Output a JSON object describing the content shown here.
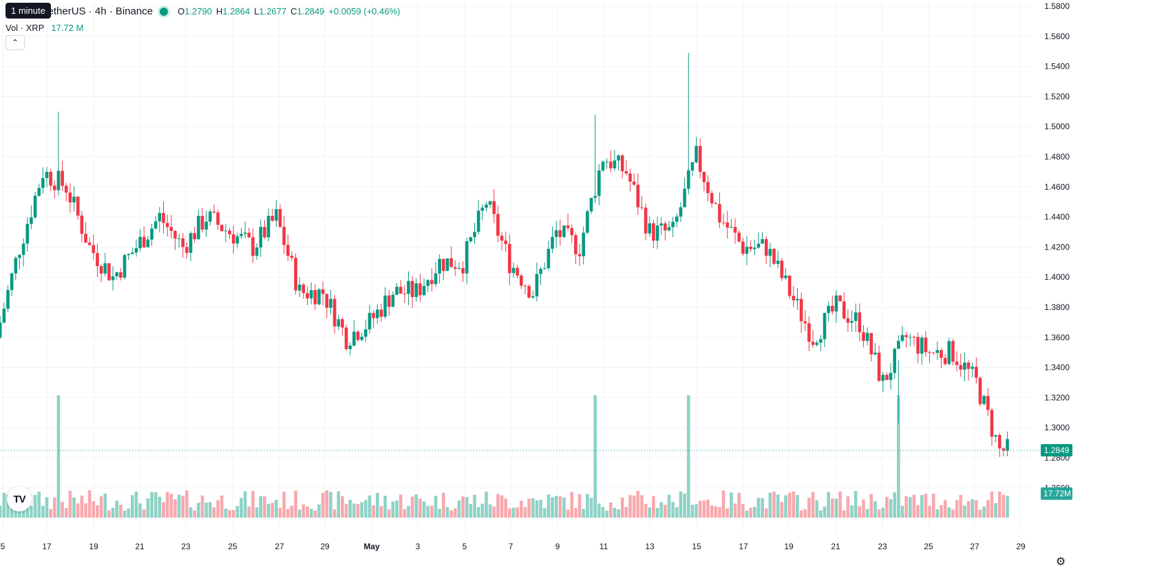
{
  "tooltip": "1 minute",
  "legend": {
    "symbol": "TetherUS · 4h · Binance",
    "open_label": "O",
    "open": "1.2790",
    "high_label": "H",
    "high": "1.2864",
    "low_label": "L",
    "low": "1.2677",
    "close_label": "C",
    "close": "1.2849",
    "change": "+0.0059 (+0.46%)",
    "vol_label": "Vol · XRP",
    "vol_value": "17.72 M"
  },
  "colors": {
    "up": "#089981",
    "down": "#f23645",
    "up_vol": "#8ed2c6",
    "down_vol": "#f7a9ae",
    "grid": "#f0f3fa"
  },
  "icons": {
    "collapse": "chevron-up-icon",
    "logo": "tradingview-logo",
    "settings": "gear-icon"
  },
  "price_badge": "1.2849",
  "volume_badge": "17.72M",
  "logo_text": "TV",
  "chart_data": {
    "type": "candlestick",
    "ylim": [
      1.245,
      1.584
    ],
    "ytick_values": [
      1.26,
      1.28,
      1.3,
      1.32,
      1.34,
      1.36,
      1.38,
      1.4,
      1.42,
      1.44,
      1.46,
      1.48,
      1.5,
      1.52,
      1.54,
      1.56,
      1.58
    ],
    "yticks": [
      "1.2600",
      "1.2800",
      "1.3000",
      "1.3200",
      "1.3400",
      "1.3600",
      "1.3800",
      "1.4000",
      "1.4200",
      "1.4400",
      "1.4600",
      "1.4800",
      "1.5000",
      "1.5200",
      "1.5400",
      "1.5600",
      "1.5800"
    ],
    "xticks": [
      "5",
      "17",
      "19",
      "21",
      "23",
      "25",
      "27",
      "29",
      "May",
      "3",
      "5",
      "7",
      "9",
      "11",
      "13",
      "15",
      "17",
      "19",
      "21",
      "23",
      "25",
      "27",
      "29"
    ],
    "current_price": 1.2849,
    "anchors": [
      {
        "date": "2025-04-15",
        "price": 1.36
      },
      {
        "date": "2025-04-16",
        "price": 1.42
      },
      {
        "date": "2025-04-17",
        "price": 1.47
      },
      {
        "date": "2025-04-18",
        "price": 1.46
      },
      {
        "date": "2025-04-19",
        "price": 1.42
      },
      {
        "date": "2025-04-20",
        "price": 1.4
      },
      {
        "date": "2025-04-21",
        "price": 1.42
      },
      {
        "date": "2025-04-22",
        "price": 1.44
      },
      {
        "date": "2025-04-23",
        "price": 1.42
      },
      {
        "date": "2025-04-24",
        "price": 1.44
      },
      {
        "date": "2025-04-25",
        "price": 1.43
      },
      {
        "date": "2025-04-26",
        "price": 1.42
      },
      {
        "date": "2025-04-27",
        "price": 1.44
      },
      {
        "date": "2025-04-28",
        "price": 1.39
      },
      {
        "date": "2025-04-29",
        "price": 1.39
      },
      {
        "date": "2025-04-30",
        "price": 1.36
      },
      {
        "date": "2025-05-01",
        "price": 1.37
      },
      {
        "date": "2025-05-02",
        "price": 1.39
      },
      {
        "date": "2025-05-03",
        "price": 1.39
      },
      {
        "date": "2025-05-04",
        "price": 1.41
      },
      {
        "date": "2025-05-05",
        "price": 1.41
      },
      {
        "date": "2025-05-06",
        "price": 1.45
      },
      {
        "date": "2025-05-07",
        "price": 1.41
      },
      {
        "date": "2025-05-08",
        "price": 1.39
      },
      {
        "date": "2025-05-09",
        "price": 1.43
      },
      {
        "date": "2025-05-10",
        "price": 1.42
      },
      {
        "date": "2025-05-11",
        "price": 1.48
      },
      {
        "date": "2025-05-12",
        "price": 1.47
      },
      {
        "date": "2025-05-13",
        "price": 1.43
      },
      {
        "date": "2025-05-14",
        "price": 1.43
      },
      {
        "date": "2025-05-15",
        "price": 1.48
      },
      {
        "date": "2025-05-16",
        "price": 1.44
      },
      {
        "date": "2025-05-17",
        "price": 1.42
      },
      {
        "date": "2025-05-18",
        "price": 1.42
      },
      {
        "date": "2025-05-19",
        "price": 1.39
      },
      {
        "date": "2025-05-20",
        "price": 1.36
      },
      {
        "date": "2025-05-21",
        "price": 1.38
      },
      {
        "date": "2025-05-22",
        "price": 1.37
      },
      {
        "date": "2025-05-23",
        "price": 1.33
      },
      {
        "date": "2025-05-24",
        "price": 1.36
      },
      {
        "date": "2025-05-25",
        "price": 1.35
      },
      {
        "date": "2025-05-26",
        "price": 1.35
      },
      {
        "date": "2025-05-27",
        "price": 1.33
      },
      {
        "date": "2025-05-28",
        "price": 1.285
      }
    ]
  }
}
